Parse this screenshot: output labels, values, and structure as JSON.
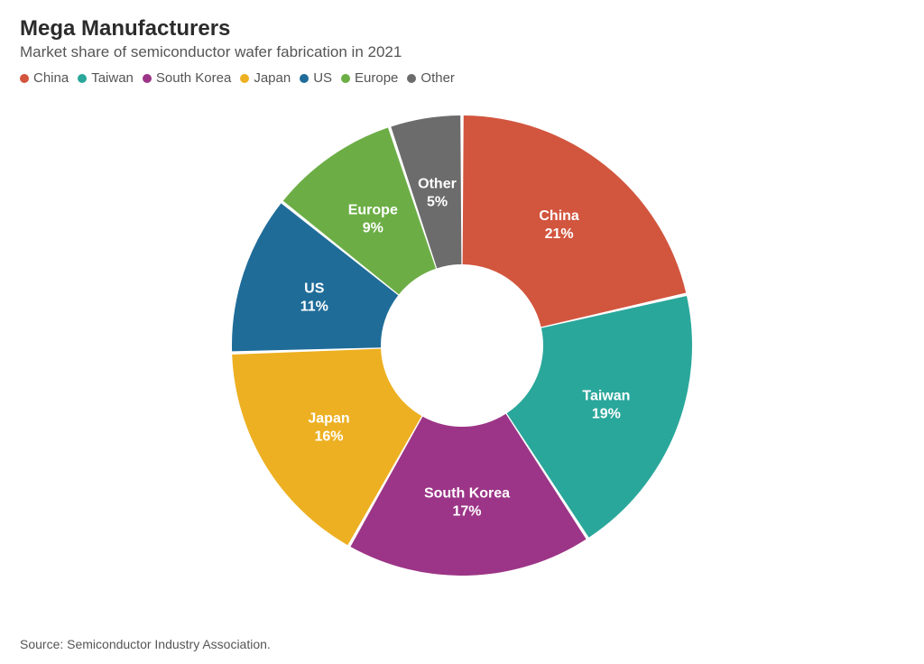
{
  "header": {
    "title": "Mega Manufacturers",
    "subtitle": "Market share of semiconductor wafer fabrication in 2021"
  },
  "chart": {
    "type": "donut",
    "total": 98,
    "outer_radius": 255,
    "inner_radius": 90,
    "gap_deg": 0.8,
    "background_color": "#ffffff",
    "stroke_color": "#ffffff",
    "label_color": "#ffffff",
    "label_fontsize": 16,
    "slices": [
      {
        "label": "China",
        "value": 21,
        "value_text": "21%",
        "color": "#d2553e"
      },
      {
        "label": "Taiwan",
        "value": 19,
        "value_text": "19%",
        "color": "#2aa79b"
      },
      {
        "label": "South Korea",
        "value": 17,
        "value_text": "17%",
        "color": "#9c3587"
      },
      {
        "label": "Japan",
        "value": 16,
        "value_text": "16%",
        "color": "#edb022"
      },
      {
        "label": "US",
        "value": 11,
        "value_text": "11%",
        "color": "#1f6c99"
      },
      {
        "label": "Europe",
        "value": 9,
        "value_text": "9%",
        "color": "#6cae45"
      },
      {
        "label": "Other",
        "value": 5,
        "value_text": "5%",
        "color": "#6c6c6c"
      }
    ]
  },
  "legend": {
    "items": [
      {
        "label": "China",
        "color": "#d2553e"
      },
      {
        "label": "Taiwan",
        "color": "#2aa79b"
      },
      {
        "label": "South Korea",
        "color": "#9c3587"
      },
      {
        "label": "Japan",
        "color": "#edb022"
      },
      {
        "label": "US",
        "color": "#1f6c99"
      },
      {
        "label": "Europe",
        "color": "#6cae45"
      },
      {
        "label": "Other",
        "color": "#6c6c6c"
      }
    ]
  },
  "footer": {
    "source": "Source: Semiconductor Industry Association."
  }
}
